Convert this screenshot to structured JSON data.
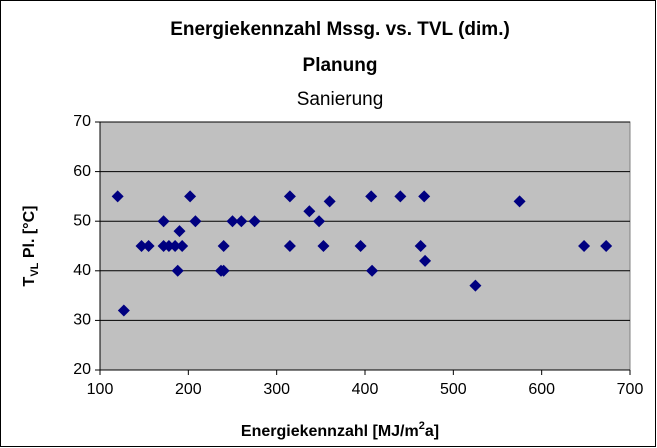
{
  "chart_data": {
    "type": "scatter",
    "title": [
      "Energiekennzahl Mssg.  vs. TVL (dim.)",
      "Planung"
    ],
    "subtitle": "Sanierung",
    "xlabel": [
      "Energiekennzahl [MJ/m",
      "2",
      "a]"
    ],
    "ylabel": [
      "T",
      "VL",
      " Pl.  [°C]"
    ],
    "color": "#000080",
    "plot_background": "#c0c0c0",
    "grid": true,
    "xlim": [
      100,
      700
    ],
    "xticks": [
      100,
      200,
      300,
      400,
      500,
      600,
      700
    ],
    "ylim": [
      20,
      70
    ],
    "yticks": [
      20,
      30,
      40,
      50,
      60,
      70
    ],
    "x": [
      120,
      127,
      147,
      155,
      172,
      172,
      178,
      185,
      188,
      190,
      193,
      202,
      208,
      237,
      240,
      240,
      250,
      260,
      275,
      315,
      315,
      337,
      348,
      353,
      360,
      395,
      407,
      408,
      440,
      463,
      467,
      468,
      525,
      575,
      648,
      673
    ],
    "values": [
      55,
      32,
      45,
      45,
      50,
      45,
      45,
      45,
      40,
      48,
      45,
      55,
      50,
      40,
      45,
      40,
      50,
      50,
      50,
      55,
      45,
      52,
      50,
      45,
      54,
      45,
      55,
      40,
      55,
      45,
      55,
      42,
      37,
      54,
      45,
      45
    ]
  }
}
